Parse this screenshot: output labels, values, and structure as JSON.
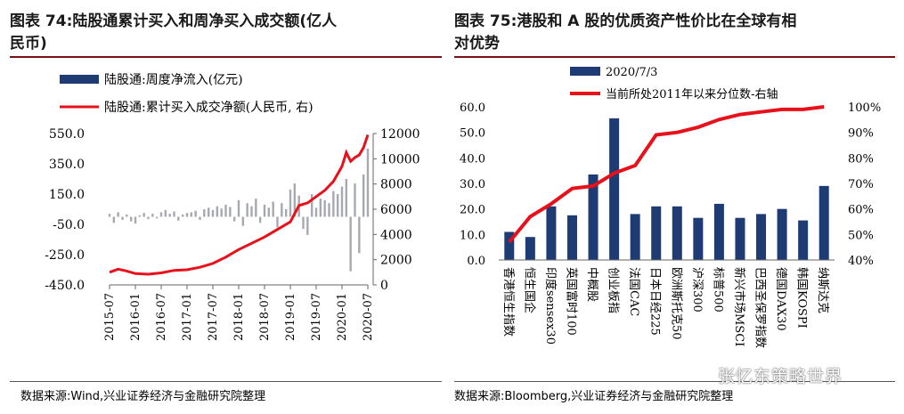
{
  "left_panel": {
    "title_line1": "图表 74:陆股通累计买入和周净买入成交额(亿人",
    "title_line2": "民币)",
    "source": "数据来源:Wind,兴业证券经济与金融研究院整理"
  },
  "right_panel": {
    "title_line1": "图表 75:港股和 A 股的优质资产性价比在全球有相",
    "title_line2": "对优势",
    "source": "数据来源:Bloomberg,兴业证券经济与金融研究院整理"
  },
  "watermark": "张忆东策略世界",
  "colors": {
    "bar": "#1f3b73",
    "line": "#e8101a",
    "accent": "#7a1010",
    "grey_bar": "#a7a9b0"
  },
  "chart_data": [
    {
      "type": "bar+line",
      "legend": [
        "陆股通:周度净流入(亿元)",
        "陆股通:累计买入成交净额(人民币, 右)"
      ],
      "left_ticks": [
        "550.0",
        "350.0",
        "150.0",
        "-50.0",
        "-250.0",
        "-450.0"
      ],
      "left_tick_values": [
        550,
        350,
        150,
        -50,
        -250,
        -450
      ],
      "right_ticks": [
        "12000",
        "10000",
        "8000",
        "6000",
        "4000",
        "2000",
        "0"
      ],
      "right_tick_values": [
        12000,
        10000,
        8000,
        6000,
        4000,
        2000,
        0
      ],
      "x_ticks": [
        "2015-07",
        "2016-01",
        "2016-07",
        "2017-01",
        "2017-07",
        "2018-01",
        "2018-07",
        "2019-01",
        "2019-07",
        "2020-01",
        "2020-07"
      ],
      "ylim_left": [
        -450,
        550
      ],
      "ylim_right": [
        0,
        12000
      ],
      "x_start": "2015-07",
      "x_end": "2020-07",
      "cumulative": [
        {
          "x": "2015-07",
          "y": 1000
        },
        {
          "x": "2015-09",
          "y": 1250
        },
        {
          "x": "2015-11",
          "y": 1100
        },
        {
          "x": "2016-01",
          "y": 900
        },
        {
          "x": "2016-04",
          "y": 850
        },
        {
          "x": "2016-07",
          "y": 950
        },
        {
          "x": "2016-10",
          "y": 1150
        },
        {
          "x": "2017-01",
          "y": 1200
        },
        {
          "x": "2017-04",
          "y": 1400
        },
        {
          "x": "2017-07",
          "y": 1700
        },
        {
          "x": "2017-10",
          "y": 2200
        },
        {
          "x": "2018-01",
          "y": 2800
        },
        {
          "x": "2018-04",
          "y": 3300
        },
        {
          "x": "2018-07",
          "y": 3800
        },
        {
          "x": "2018-10",
          "y": 4400
        },
        {
          "x": "2019-01",
          "y": 5000
        },
        {
          "x": "2019-03",
          "y": 6300
        },
        {
          "x": "2019-05",
          "y": 6500
        },
        {
          "x": "2019-07",
          "y": 7000
        },
        {
          "x": "2019-09",
          "y": 7500
        },
        {
          "x": "2019-11",
          "y": 8200
        },
        {
          "x": "2020-01",
          "y": 9400
        },
        {
          "x": "2020-02",
          "y": 10500
        },
        {
          "x": "2020-03",
          "y": 9800
        },
        {
          "x": "2020-04",
          "y": 10100
        },
        {
          "x": "2020-05",
          "y": 10300
        },
        {
          "x": "2020-06",
          "y": 10900
        },
        {
          "x": "2020-07",
          "y": 11900
        }
      ],
      "weekly_flow": [
        {
          "x": "2015-07",
          "y": 20
        },
        {
          "x": "2015-08",
          "y": -40
        },
        {
          "x": "2015-09",
          "y": 30
        },
        {
          "x": "2015-10",
          "y": -20
        },
        {
          "x": "2015-11",
          "y": 15
        },
        {
          "x": "2015-12",
          "y": -30
        },
        {
          "x": "2016-01",
          "y": -45
        },
        {
          "x": "2016-02",
          "y": 10
        },
        {
          "x": "2016-03",
          "y": 25
        },
        {
          "x": "2016-04",
          "y": -15
        },
        {
          "x": "2016-05",
          "y": 20
        },
        {
          "x": "2016-06",
          "y": -10
        },
        {
          "x": "2016-07",
          "y": 30
        },
        {
          "x": "2016-08",
          "y": 45
        },
        {
          "x": "2016-09",
          "y": 20
        },
        {
          "x": "2016-10",
          "y": 35
        },
        {
          "x": "2016-11",
          "y": -25
        },
        {
          "x": "2016-12",
          "y": 15
        },
        {
          "x": "2017-01",
          "y": 25
        },
        {
          "x": "2017-02",
          "y": 30
        },
        {
          "x": "2017-03",
          "y": 40
        },
        {
          "x": "2017-04",
          "y": -20
        },
        {
          "x": "2017-05",
          "y": 50
        },
        {
          "x": "2017-06",
          "y": 60
        },
        {
          "x": "2017-07",
          "y": 45
        },
        {
          "x": "2017-08",
          "y": 70
        },
        {
          "x": "2017-09",
          "y": 55
        },
        {
          "x": "2017-10",
          "y": 80
        },
        {
          "x": "2017-11",
          "y": 65
        },
        {
          "x": "2017-12",
          "y": -30
        },
        {
          "x": "2018-01",
          "y": 110
        },
        {
          "x": "2018-02",
          "y": -60
        },
        {
          "x": "2018-03",
          "y": 90
        },
        {
          "x": "2018-04",
          "y": 70
        },
        {
          "x": "2018-05",
          "y": 120
        },
        {
          "x": "2018-06",
          "y": -40
        },
        {
          "x": "2018-07",
          "y": 80
        },
        {
          "x": "2018-08",
          "y": 60
        },
        {
          "x": "2018-09",
          "y": 100
        },
        {
          "x": "2018-10",
          "y": -70
        },
        {
          "x": "2018-11",
          "y": 90
        },
        {
          "x": "2018-12",
          "y": 50
        },
        {
          "x": "2019-01",
          "y": 180
        },
        {
          "x": "2019-02",
          "y": 220
        },
        {
          "x": "2019-03",
          "y": 140
        },
        {
          "x": "2019-04",
          "y": -80
        },
        {
          "x": "2019-05",
          "y": -120
        },
        {
          "x": "2019-06",
          "y": 150
        },
        {
          "x": "2019-07",
          "y": 60
        },
        {
          "x": "2019-08",
          "y": 120
        },
        {
          "x": "2019-09",
          "y": 110
        },
        {
          "x": "2019-10",
          "y": 90
        },
        {
          "x": "2019-11",
          "y": 170
        },
        {
          "x": "2019-12",
          "y": 150
        },
        {
          "x": "2020-01",
          "y": 200
        },
        {
          "x": "2020-02",
          "y": 250
        },
        {
          "x": "2020-03",
          "y": -360
        },
        {
          "x": "2020-04",
          "y": 220
        },
        {
          "x": "2020-05",
          "y": -240
        },
        {
          "x": "2020-06",
          "y": 280
        },
        {
          "x": "2020-07",
          "y": 450
        }
      ]
    },
    {
      "type": "bar+line",
      "legend": [
        "2020/7/3",
        "当前所处2011年以来分位数-右轴"
      ],
      "categories": [
        "香港恒生指数",
        "恒生国企",
        "印度sensex30",
        "英国富时100",
        "中概股",
        "创业板指",
        "法国CAC",
        "日本日经225",
        "欧洲斯托克50",
        "沪深300",
        "标普500",
        "新兴市场MSCI",
        "巴西圣保罗指数",
        "德国DAX30",
        "韩国KOSPI",
        "纳斯达克"
      ],
      "bar_values": [
        11,
        9,
        21,
        17.5,
        33.5,
        55.5,
        18,
        21,
        21,
        16.5,
        22,
        16.5,
        18,
        20,
        15.5,
        29
      ],
      "line_values": [
        47,
        57,
        62,
        68,
        69,
        74,
        77,
        89,
        90,
        92,
        95,
        97,
        98,
        99,
        99,
        100
      ],
      "left_ticks": [
        "60.0",
        "50.0",
        "40.0",
        "30.0",
        "20.0",
        "10.0",
        "0.0"
      ],
      "left_tick_values": [
        60,
        50,
        40,
        30,
        20,
        10,
        0
      ],
      "right_ticks": [
        "100%",
        "90%",
        "80%",
        "70%",
        "60%",
        "50%",
        "40%"
      ],
      "right_tick_values": [
        100,
        90,
        80,
        70,
        60,
        50,
        40
      ],
      "ylim_left": [
        0,
        60
      ],
      "ylim_right": [
        40,
        100
      ]
    }
  ]
}
